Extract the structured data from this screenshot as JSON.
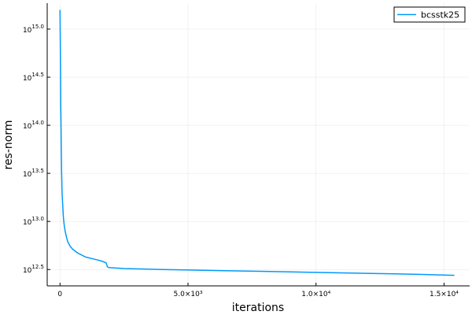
{
  "chart_data": {
    "type": "line",
    "title": "",
    "xlabel": "iterations",
    "ylabel": "res-norm",
    "x_scale": "linear",
    "y_scale": "log",
    "xlim": [
      -500,
      16000
    ],
    "ylim_log10": [
      12.33,
      15.27
    ],
    "x_ticks": [
      {
        "value": 0,
        "label": "0"
      },
      {
        "value": 5000,
        "label": "5.0×10³"
      },
      {
        "value": 10000,
        "label": "1.0×10⁴"
      },
      {
        "value": 15000,
        "label": "1.5×10⁴"
      }
    ],
    "y_ticks": [
      {
        "value": 15.0,
        "base": "10",
        "exp": "15.0"
      },
      {
        "value": 14.5,
        "base": "10",
        "exp": "14.5"
      },
      {
        "value": 14.0,
        "base": "10",
        "exp": "14.0"
      },
      {
        "value": 13.5,
        "base": "10",
        "exp": "13.5"
      },
      {
        "value": 13.0,
        "base": "10",
        "exp": "13.0"
      },
      {
        "value": 12.5,
        "base": "10",
        "exp": "12.5"
      }
    ],
    "grid": true,
    "legend_position": "top-right",
    "series": [
      {
        "name": "bcsstk25",
        "color": "#009AFA",
        "x": [
          0,
          10,
          20,
          30,
          40,
          50,
          60,
          80,
          100,
          130,
          160,
          200,
          250,
          300,
          400,
          500,
          700,
          1000,
          1300,
          1600,
          1800,
          1850,
          1900,
          2500,
          4000,
          6000,
          8000,
          10000,
          12000,
          14000,
          15400
        ],
        "log10_y": [
          15.2,
          14.9,
          14.6,
          14.2,
          14.0,
          13.75,
          13.55,
          13.3,
          13.2,
          13.05,
          12.97,
          12.9,
          12.84,
          12.79,
          12.74,
          12.71,
          12.67,
          12.63,
          12.61,
          12.59,
          12.57,
          12.53,
          12.52,
          12.51,
          12.5,
          12.49,
          12.48,
          12.47,
          12.46,
          12.45,
          12.44
        ]
      }
    ]
  }
}
